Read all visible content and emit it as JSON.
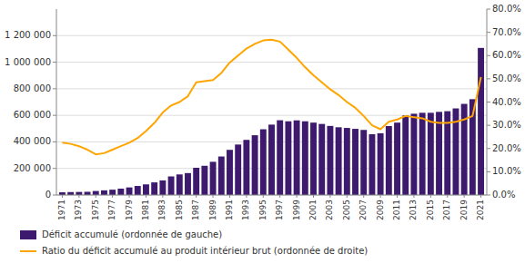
{
  "chart_data": {
    "type": "bar",
    "x": [
      1971,
      1972,
      1973,
      1974,
      1975,
      1976,
      1977,
      1978,
      1979,
      1980,
      1981,
      1982,
      1983,
      1984,
      1985,
      1986,
      1987,
      1988,
      1989,
      1990,
      1991,
      1992,
      1993,
      1994,
      1995,
      1996,
      1997,
      1998,
      1999,
      2000,
      2001,
      2002,
      2003,
      2004,
      2005,
      2006,
      2007,
      2008,
      2009,
      2010,
      2011,
      2012,
      2013,
      2014,
      2015,
      2016,
      2017,
      2018,
      2019,
      2020,
      2021
    ],
    "series": [
      {
        "name": "Déficit accumulé (ordonnée de gauche)",
        "type": "bar",
        "color": "#3d1a6e",
        "values": [
          20300,
          22000,
          23000,
          24000,
          30000,
          35000,
          40000,
          48000,
          57000,
          68000,
          80000,
          95000,
          110000,
          140000,
          155000,
          165000,
          205000,
          220000,
          250000,
          290000,
          340000,
          380000,
          415000,
          450000,
          495000,
          530000,
          562900,
          555000,
          562000,
          555000,
          545000,
          535000,
          520000,
          510000,
          505000,
          498000,
          490000,
          457600,
          465000,
          519000,
          545000,
          599000,
          612000,
          619000,
          619000,
          626000,
          631000,
          652000,
          686000,
          721400,
          1107400
        ]
      },
      {
        "name": "Ratio du déficit accumulé au produit intérieur brut (ordonnée de droite)",
        "type": "line",
        "color": "#FFA500",
        "axis": "y2",
        "values": [
          22.5,
          22.0,
          21.0,
          19.5,
          17.5,
          18.0,
          19.5,
          21.0,
          22.5,
          24.5,
          27.5,
          31.0,
          35.5,
          38.5,
          40.0,
          42.5,
          48.5,
          49.0,
          49.5,
          52.5,
          57.0,
          60.0,
          63.0,
          65.0,
          66.5,
          66.8,
          66.0,
          62.5,
          59.0,
          55.0,
          51.5,
          48.5,
          45.5,
          43.0,
          40.0,
          37.5,
          34.0,
          30.0,
          28.3,
          31.5,
          32.5,
          34.0,
          33.5,
          33.0,
          31.5,
          31.0,
          31.0,
          31.5,
          32.5,
          34.0,
          50.7
        ]
      }
    ],
    "xlim": [
      1970.3,
      2021.7
    ],
    "xticks": [
      1971,
      1973,
      1975,
      1977,
      1979,
      1981,
      1983,
      1985,
      1987,
      1989,
      1991,
      1993,
      1995,
      1997,
      1999,
      2001,
      2003,
      2005,
      2007,
      2009,
      2011,
      2013,
      2015,
      2017,
      2019,
      2021
    ],
    "ylim": [
      0,
      1400000
    ],
    "yticks": [
      0,
      {
        "value": 200000,
        "label": "200 000"
      },
      {
        "value": 400000,
        "label": "400 000"
      },
      {
        "value": 600000,
        "label": "600 000"
      },
      {
        "value": 800000,
        "label": "800 000"
      },
      {
        "value": 1000000,
        "label": "1 000 000"
      },
      {
        "value": 1200000,
        "label": "1 200 000"
      }
    ],
    "y2lim": [
      0,
      80.0
    ],
    "y2ticks": [
      {
        "value": 0.0,
        "label": "0.0%"
      },
      {
        "value": 10.0,
        "label": "10.0%"
      },
      {
        "value": 20.0,
        "label": "20.0%"
      },
      {
        "value": 30.0,
        "label": "30.0%"
      },
      {
        "value": 40.0,
        "label": "40.0%"
      },
      {
        "value": 50.0,
        "label": "50.0%"
      },
      {
        "value": 60.0,
        "label": "60.0%"
      },
      {
        "value": 70.0,
        "label": "70.0%"
      },
      {
        "value": 80.0,
        "label": "80.0%"
      }
    ],
    "grid": true,
    "legend": "lower left"
  }
}
